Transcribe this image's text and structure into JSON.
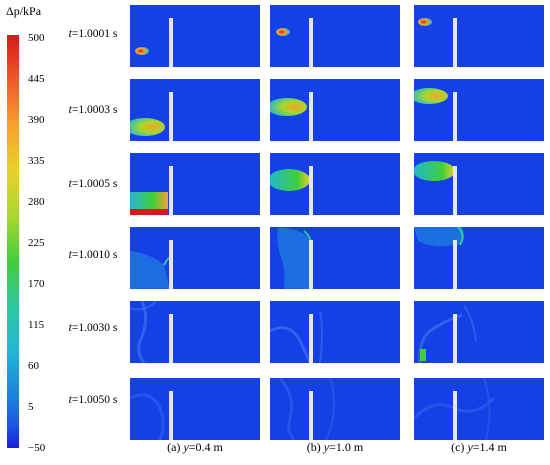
{
  "colorbar": {
    "title": "Δp/kPa",
    "ticks": [
      "500",
      "445",
      "390",
      "335",
      "280",
      "225",
      "170",
      "115",
      "60",
      "5",
      "−50"
    ]
  },
  "rows": [
    {
      "prefix": "t",
      "value": "=1.0001 s"
    },
    {
      "prefix": "t",
      "value": "=1.0003 s"
    },
    {
      "prefix": "t",
      "value": "=1.0005 s"
    },
    {
      "prefix": "t",
      "value": "=1.0010 s"
    },
    {
      "prefix": "t",
      "value": "=1.0030 s"
    },
    {
      "prefix": "t",
      "value": "=1.0050 s"
    }
  ],
  "columns": [
    {
      "tag": "(a) ",
      "var": "y",
      "value": "=0.4 m"
    },
    {
      "tag": "(b) ",
      "var": "y",
      "value": "=1.0 m"
    },
    {
      "tag": "(c) ",
      "var": "y",
      "value": "=1.4 m"
    }
  ],
  "colors": {
    "background_field": "#1540e6",
    "wall": "#e6e6e6",
    "peak": "#d7191c"
  }
}
